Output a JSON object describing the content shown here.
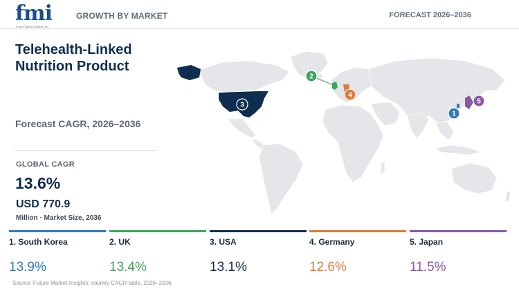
{
  "header": {
    "logo_text": "fmi",
    "logo_tagline": "Future Market Insights, Inc.",
    "title": "GROWTH BY MARKET",
    "forecast_label": "FORECAST 2026–2036"
  },
  "report": {
    "title": "Telehealth-Linked Nutrition Product",
    "cagr_period": "Forecast CAGR, 2026–2036",
    "global_cagr_label": "GLOBAL CAGR",
    "global_cagr_value": "13.6%",
    "market_size_value": "USD 770.9",
    "market_size_label": "Million · Market Size, 2036"
  },
  "colors": {
    "navy": "#0f2d4e",
    "blue": "#2f7ab8",
    "green": "#3ea35a",
    "orange": "#e07a3a",
    "purple": "#8b57a7",
    "land": "#e4e6e9"
  },
  "markers": [
    {
      "rank": "1",
      "country": "South Korea",
      "color": "#2f7ab8"
    },
    {
      "rank": "2",
      "country": "UK",
      "color": "#3ea35a"
    },
    {
      "rank": "3",
      "country": "USA",
      "color": "#0f2d4e"
    },
    {
      "rank": "4",
      "country": "Germany",
      "color": "#e07a3a"
    },
    {
      "rank": "5",
      "country": "Japan",
      "color": "#8b57a7"
    }
  ],
  "countries": [
    {
      "name": "1. South Korea",
      "cagr": "13.9%",
      "color": "#2f7ab8"
    },
    {
      "name": "2. UK",
      "cagr": "13.4%",
      "color": "#3ea35a"
    },
    {
      "name": "3. USA",
      "cagr": "13.1%",
      "color": "#0f2d4e"
    },
    {
      "name": "4. Germany",
      "cagr": "12.6%",
      "color": "#e07a3a"
    },
    {
      "name": "5. Japan",
      "cagr": "11.5%",
      "color": "#8b57a7"
    }
  ],
  "footer": {
    "source": "Source: Future Market Insights; country CAGR table, 2026–2036."
  }
}
